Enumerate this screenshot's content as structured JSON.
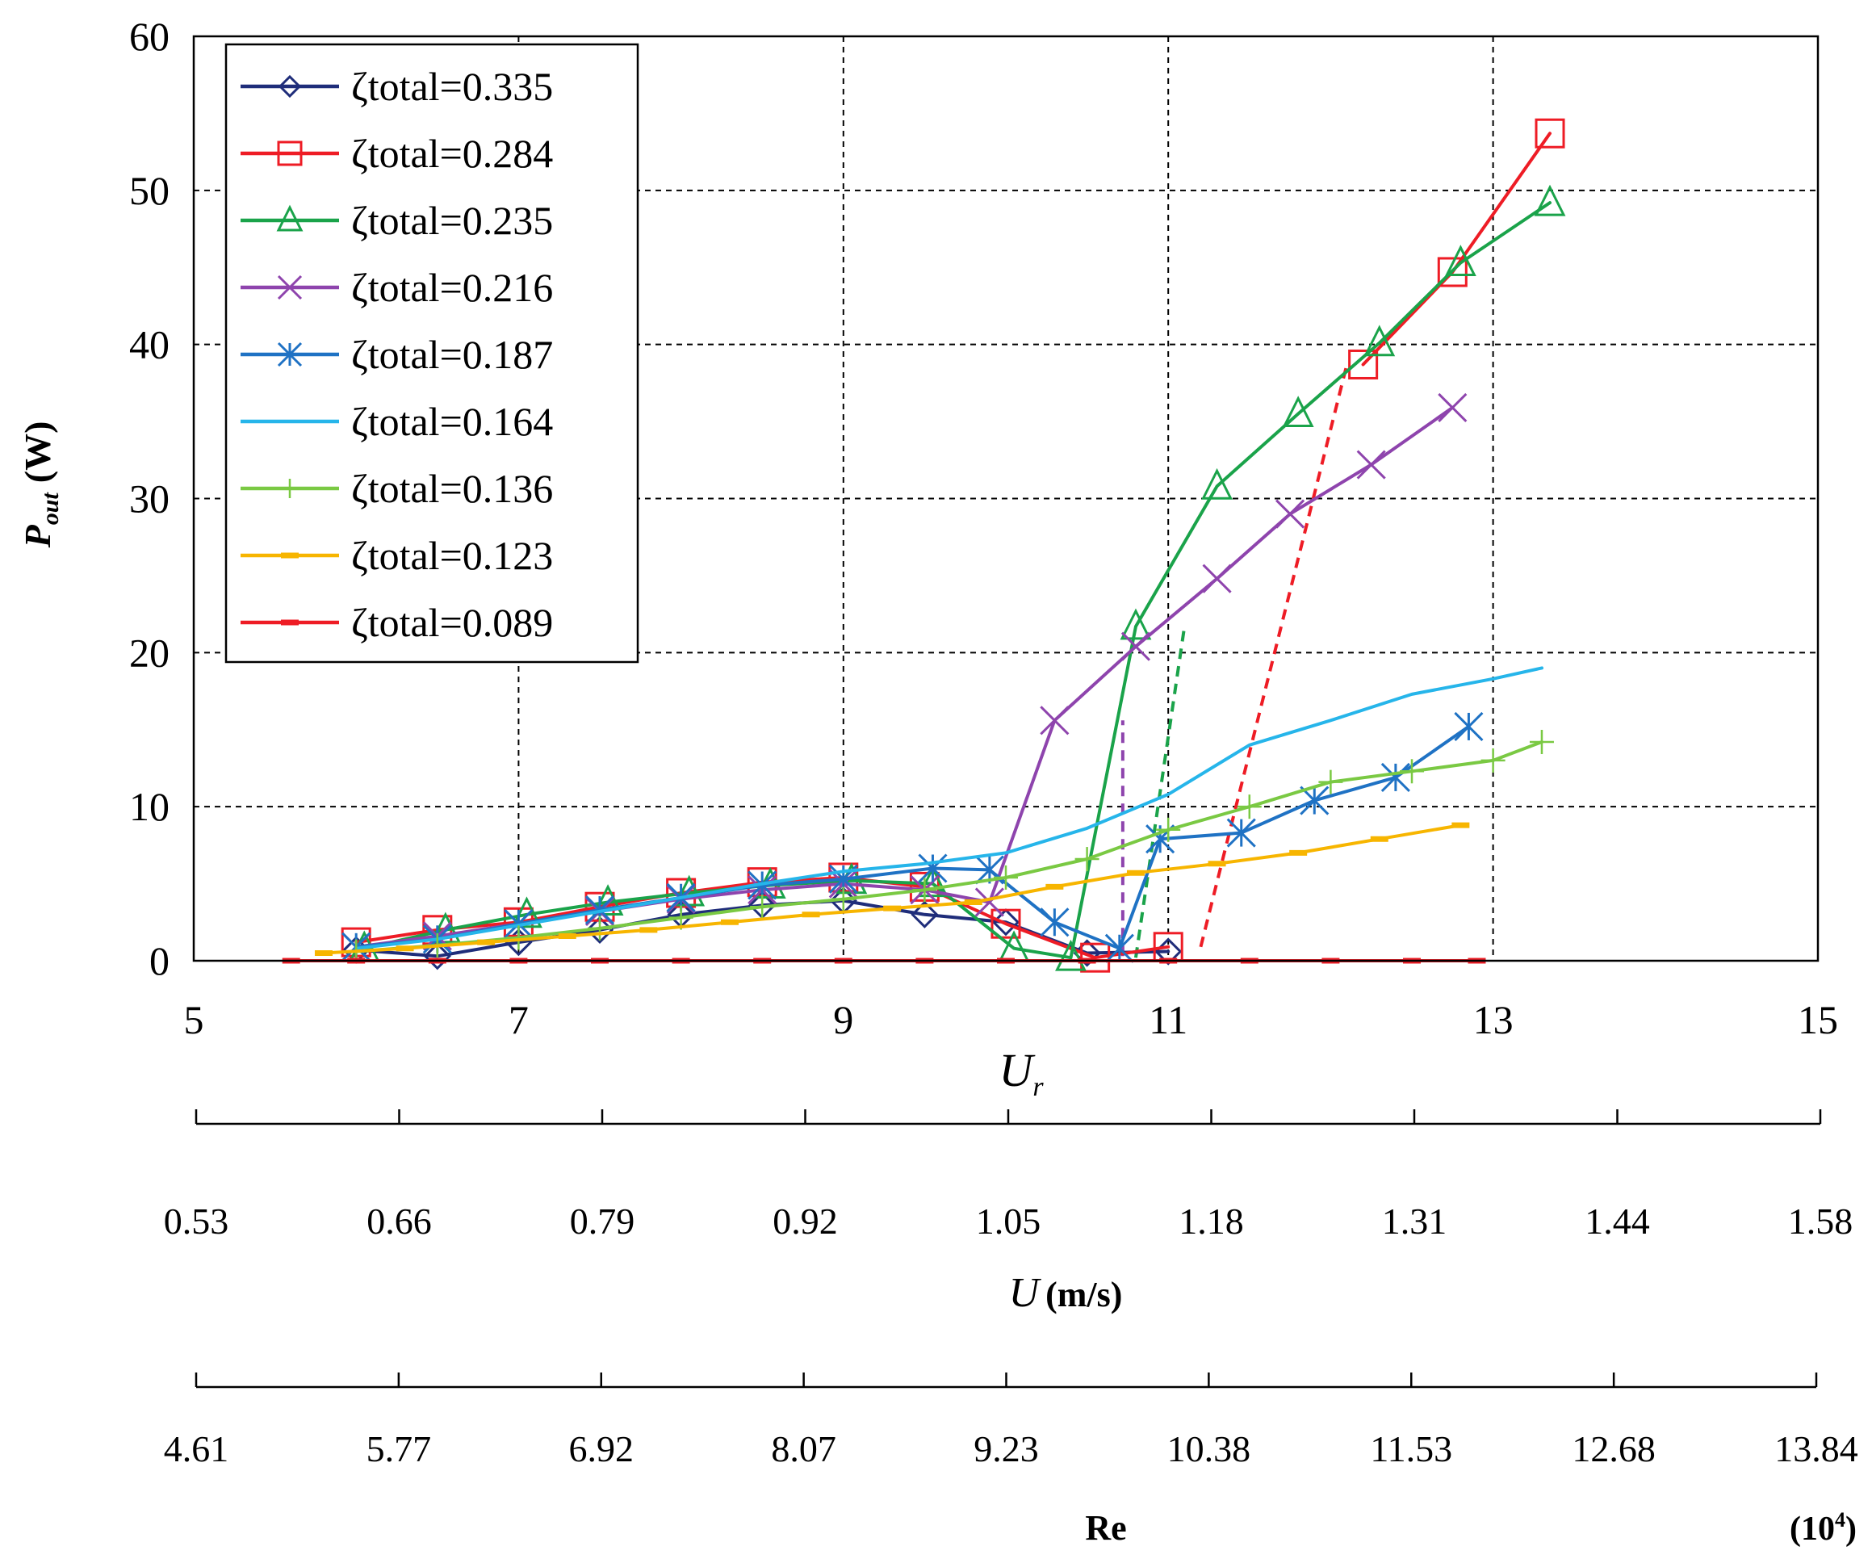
{
  "chart_data": {
    "type": "line",
    "title": "",
    "xlabel": "U",
    "xlabel_sub": "r",
    "ylabel": "P",
    "ylabel_sub": "out",
    "ylabel_unit": "(W)",
    "xlim": [
      5,
      15
    ],
    "ylim": [
      0,
      60
    ],
    "xticks": [
      5,
      7,
      9,
      11,
      13,
      15
    ],
    "xtick_labels": [
      "5",
      "7",
      "9",
      "11",
      "13",
      "15"
    ],
    "yticks": [
      0,
      10,
      20,
      30,
      40,
      50,
      60
    ],
    "ytick_labels": [
      "0",
      "10",
      "20",
      "30",
      "40",
      "50",
      "60"
    ],
    "grid": true,
    "legend_position": "top-left",
    "secondary_axes": [
      {
        "name": "velocity",
        "label": "U",
        "unit": "(m/s)",
        "ticks": [
          "0.53",
          "0.66",
          "0.79",
          "0.92",
          "1.05",
          "1.18",
          "1.31",
          "1.44",
          "1.58"
        ]
      },
      {
        "name": "reynolds",
        "label": "Re",
        "scale": "(10",
        "scale_exp": "4",
        "scale_close": ")",
        "ticks": [
          "4.61",
          "5.77",
          "6.92",
          "8.07",
          "9.23",
          "10.38",
          "11.53",
          "12.68",
          "13.84"
        ]
      }
    ],
    "series": [
      {
        "name": "ζtotal=0.335",
        "color": "#1f2d7a",
        "marker": "diamond",
        "x": [
          6.0,
          6.5,
          7.0,
          7.5,
          8.0,
          8.5,
          9.0,
          9.5,
          10.0,
          10.5,
          11.0
        ],
        "y": [
          0.7,
          0.3,
          1.2,
          2.0,
          3.0,
          3.6,
          3.9,
          3.0,
          2.5,
          0.5,
          0.6
        ]
      },
      {
        "name": "ζtotal=0.284",
        "color": "#ee1c25",
        "marker": "square",
        "x": [
          6.0,
          6.5,
          7.0,
          7.5,
          8.0,
          8.5,
          9.0,
          9.5,
          10.0,
          10.55,
          11.0,
          11.5,
          12.2,
          12.75,
          13.35
        ],
        "y": [
          1.2,
          2.0,
          2.5,
          3.5,
          4.4,
          5.1,
          5.4,
          4.8,
          2.4,
          0.2,
          0.9,
          null,
          38.7,
          44.7,
          53.7
        ]
      },
      {
        "name": "ζtotal=0.235",
        "color": "#1aa34a",
        "marker": "triangle",
        "x": [
          6.05,
          6.55,
          7.05,
          7.55,
          8.05,
          8.55,
          9.05,
          9.55,
          10.05,
          10.4,
          10.8,
          11.3,
          11.8,
          12.3,
          12.8,
          13.35
        ],
        "y": [
          0.8,
          2.0,
          3.0,
          3.8,
          4.4,
          4.9,
          5.2,
          5.0,
          0.8,
          0.2,
          21.7,
          30.8,
          35.5,
          40.1,
          45.3,
          49.2
        ]
      },
      {
        "name": "ζtotal=0.216",
        "color": "#8e44ad",
        "marker": "x",
        "x": [
          6.0,
          6.5,
          7.0,
          7.5,
          8.0,
          8.5,
          9.0,
          9.5,
          9.9,
          10.3,
          10.8,
          11.3,
          11.75,
          12.25,
          12.75
        ],
        "y": [
          0.9,
          1.6,
          2.4,
          3.2,
          4.0,
          4.6,
          5.0,
          4.6,
          3.8,
          15.6,
          20.4,
          24.8,
          29.0,
          32.2,
          35.9
        ]
      },
      {
        "name": "ζtotal=0.187",
        "color": "#1f72c4",
        "marker": "asterisk",
        "x": [
          6.0,
          6.5,
          7.0,
          7.5,
          8.0,
          8.5,
          9.0,
          9.55,
          9.9,
          10.3,
          10.7,
          10.95,
          11.45,
          11.9,
          12.4,
          12.85
        ],
        "y": [
          0.9,
          1.4,
          2.4,
          3.3,
          4.1,
          4.9,
          5.3,
          6.0,
          5.9,
          2.5,
          0.8,
          7.9,
          8.3,
          10.4,
          11.9,
          15.2
        ]
      },
      {
        "name": "ζtotal=0.164",
        "color": "#26b5ea",
        "marker": "none",
        "x": [
          6.0,
          6.5,
          7.0,
          7.5,
          8.0,
          8.5,
          9.0,
          9.5,
          10.0,
          10.5,
          11.0,
          11.5,
          12.0,
          12.5,
          13.0,
          13.3
        ],
        "y": [
          0.8,
          1.4,
          2.3,
          3.2,
          4.1,
          5.0,
          5.8,
          6.3,
          7.0,
          8.6,
          10.8,
          14.0,
          15.6,
          17.3,
          18.3,
          19.0
        ]
      },
      {
        "name": "ζtotal=0.136",
        "color": "#7ac943",
        "marker": "plus",
        "x": [
          6.0,
          6.5,
          7.0,
          7.5,
          8.0,
          8.5,
          9.0,
          9.5,
          10.0,
          10.5,
          11.0,
          11.5,
          12.0,
          12.5,
          13.0,
          13.3
        ],
        "y": [
          0.6,
          1.0,
          1.5,
          2.1,
          2.8,
          3.5,
          4.0,
          4.6,
          5.4,
          6.6,
          8.5,
          10.0,
          11.6,
          12.3,
          13.0,
          14.2
        ]
      },
      {
        "name": "ζtotal=0.123",
        "color": "#f7b500",
        "marker": "dash",
        "x": [
          5.8,
          6.3,
          6.8,
          7.3,
          7.8,
          8.3,
          8.8,
          9.3,
          9.8,
          10.3,
          10.8,
          11.3,
          11.8,
          12.3,
          12.8
        ],
        "y": [
          0.5,
          0.8,
          1.2,
          1.6,
          2.0,
          2.5,
          3.0,
          3.4,
          3.8,
          4.8,
          5.7,
          6.3,
          7.0,
          7.9,
          8.8
        ]
      },
      {
        "name": "ζtotal=0.089",
        "color": "#ee1c25",
        "marker": "dash",
        "x": [
          5.6,
          6.0,
          6.5,
          7.0,
          7.5,
          8.0,
          8.5,
          9.0,
          9.5,
          10.0,
          10.5,
          11.0,
          11.5,
          12.0,
          12.5,
          12.9
        ],
        "y": [
          0,
          0,
          0,
          0,
          0,
          0,
          0,
          0,
          0,
          0,
          0,
          0,
          0,
          0,
          0,
          0
        ]
      }
    ],
    "jump_lines": [
      {
        "series": "ζtotal=0.216",
        "color": "#8e44ad",
        "from": [
          10.72,
          0.3
        ],
        "to": [
          10.72,
          15.6
        ]
      },
      {
        "series": "ζtotal=0.235",
        "color": "#1aa34a",
        "from": [
          10.8,
          0.2
        ],
        "to": [
          11.1,
          21.7
        ]
      },
      {
        "series": "ζtotal=0.284",
        "color": "#ee1c25",
        "from": [
          11.2,
          0.9
        ],
        "to": [
          12.1,
          38.7
        ]
      }
    ]
  }
}
